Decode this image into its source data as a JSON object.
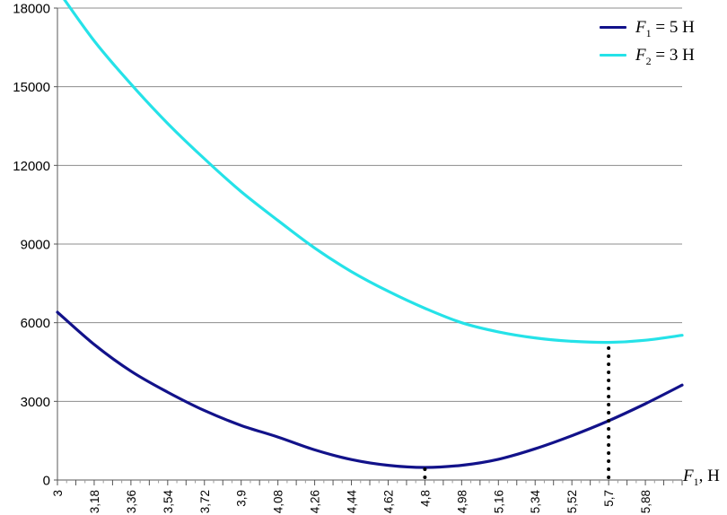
{
  "chart_data": {
    "type": "line",
    "title": "",
    "xlabel": {
      "symbol": "F",
      "sub": "1",
      "rest": ", Н"
    },
    "ylabel": "",
    "xlim": [
      3,
      6.06
    ],
    "ylim": [
      0,
      18000
    ],
    "grid": {
      "horizontal": true,
      "vertical": false,
      "color": "#8c8c8c"
    },
    "axis_color": "#5a5a5a",
    "tick_color": "#555555",
    "label_color": "#000000",
    "legend_position": "top-right",
    "y_ticks": [
      "0",
      "3000",
      "6000",
      "9000",
      "12000",
      "15000",
      "18000"
    ],
    "y_tick_values": [
      0,
      3000,
      6000,
      9000,
      12000,
      15000,
      18000
    ],
    "x_tick_labels": [
      "3",
      "3,18",
      "3,36",
      "3,54",
      "3,72",
      "3,9",
      "4,08",
      "4,26",
      "4,44",
      "4,62",
      "4,8",
      "4,98",
      "5,16",
      "5,34",
      "5,52",
      "5,7",
      "5,88"
    ],
    "x_label_step": 0.18,
    "x_minor_step": 0.045,
    "x": [
      3.0,
      3.18,
      3.36,
      3.54,
      3.72,
      3.9,
      4.08,
      4.26,
      4.44,
      4.62,
      4.8,
      4.98,
      5.16,
      5.34,
      5.52,
      5.7,
      5.88,
      6.06
    ],
    "series": [
      {
        "name": "F1 = 5 Н",
        "legend": {
          "symbol": "F",
          "sub": "1",
          "rest": " = 5 Н"
        },
        "color": "#12128a",
        "values": [
          6400,
          5170,
          4150,
          3350,
          2650,
          2080,
          1640,
          1150,
          780,
          560,
          480,
          560,
          790,
          1190,
          1690,
          2260,
          2910,
          3620
        ]
      },
      {
        "name": "F2 = 3 Н",
        "legend": {
          "symbol": "F",
          "sub": "2",
          "rest": " = 3 Н"
        },
        "color": "#25e2e8",
        "values": [
          18700,
          16750,
          15100,
          13600,
          12250,
          11000,
          9900,
          8850,
          7950,
          7200,
          6550,
          6000,
          5650,
          5420,
          5290,
          5250,
          5330,
          5520
        ]
      }
    ],
    "annotations": [
      {
        "type": "dotted-vline",
        "x": 4.8,
        "to_value": 480,
        "color": "#000000"
      },
      {
        "type": "dotted-vline",
        "x": 5.7,
        "to_value": 5250,
        "color": "#000000"
      }
    ],
    "background": "#ffffff"
  }
}
